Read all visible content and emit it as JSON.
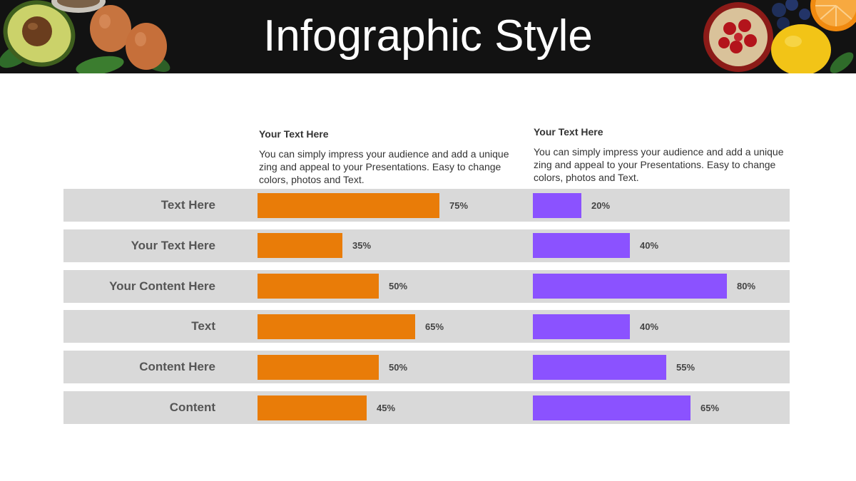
{
  "header": {
    "title": "Infographic Style"
  },
  "colors": {
    "series_a": "#e97c08",
    "series_b": "#8b52ff",
    "row_background": "#d9d9d9",
    "banner_background": "#121212"
  },
  "icons": [
    "avocado-icon",
    "egg-icon",
    "spinach-leaf-icon",
    "nuts-bowl-icon",
    "pomegranate-icon",
    "blueberry-icon",
    "lemon-icon",
    "orange-icon"
  ],
  "columns": [
    {
      "title": "Your Text  Here",
      "description": "You can simply impress your audience and add a unique zing and appeal to your Presentations. Easy to change colors, photos and Text."
    },
    {
      "title": "Your Text  Here",
      "description": "You can simply impress your audience and add a unique zing and appeal to your Presentations. Easy to change colors, photos and Text."
    }
  ],
  "chart_data": {
    "type": "bar",
    "orientation": "horizontal",
    "categories": [
      "Text Here",
      "Your Text Here",
      "Your Content  Here",
      "Text",
      "Content Here",
      "Content"
    ],
    "series": [
      {
        "values": [
          75,
          35,
          50,
          65,
          50,
          45
        ],
        "labels": [
          "75%",
          "35%",
          "50%",
          "65%",
          "50%",
          "45%"
        ]
      },
      {
        "values": [
          20,
          40,
          80,
          40,
          55,
          65
        ],
        "labels": [
          "20%",
          "40%",
          "80%",
          "40%",
          "55%",
          "65%"
        ]
      }
    ],
    "xlim": [
      0,
      100
    ],
    "unit": "%",
    "grid": false,
    "legend": "none"
  }
}
